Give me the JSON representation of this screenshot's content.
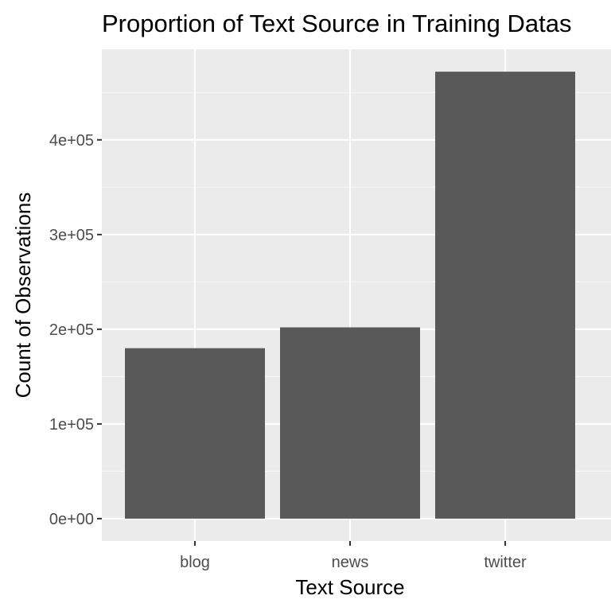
{
  "chart_data": {
    "type": "bar",
    "title": "Proportion of Text Source in Training Datas",
    "xlabel": "Text Source",
    "ylabel": "Count of Observations",
    "categories": [
      "blog",
      "news",
      "twitter"
    ],
    "values": [
      180000,
      202000,
      472000
    ],
    "y_ticks": [
      0,
      100000,
      200000,
      300000,
      400000
    ],
    "y_tick_labels": [
      "0e+00",
      "1e+05",
      "2e+05",
      "3e+05",
      "4e+05"
    ],
    "ylim": [
      -23600,
      495600
    ],
    "grid": true,
    "colors": {
      "panel_background": "#ebebeb",
      "grid_major": "#ffffff",
      "grid_minor": "#f5f5f5",
      "bar_fill": "#595959",
      "tick_color": "#333333"
    }
  }
}
